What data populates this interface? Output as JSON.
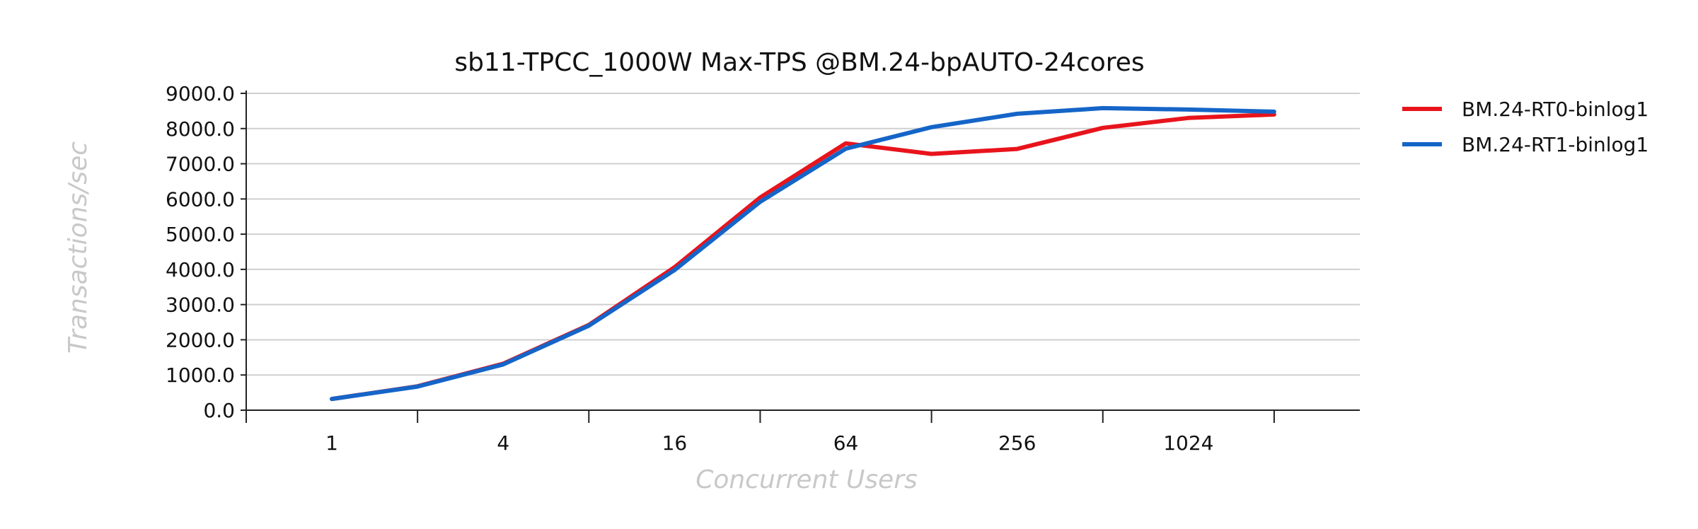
{
  "chart_data": {
    "type": "line",
    "title": "sb11-TPCC_1000W Max-TPS @BM.24-bpAUTO-24cores",
    "xlabel": "Concurrent Users",
    "ylabel": "Transactions/sec",
    "x_scale": "log2",
    "x": [
      1,
      2,
      4,
      8,
      16,
      32,
      64,
      128,
      256,
      512,
      1024,
      2048
    ],
    "x_tick_labels": [
      {
        "value": 1,
        "label": "1"
      },
      {
        "value": 4,
        "label": "4"
      },
      {
        "value": 16,
        "label": "16"
      },
      {
        "value": 64,
        "label": "64"
      },
      {
        "value": 256,
        "label": "256"
      },
      {
        "value": 1024,
        "label": "1024"
      }
    ],
    "ylim": [
      0,
      9000
    ],
    "y_ticks": [
      "0.0",
      "1000.0",
      "2000.0",
      "3000.0",
      "4000.0",
      "5000.0",
      "6000.0",
      "7000.0",
      "8000.0",
      "9000.0"
    ],
    "grid": true,
    "legend_position": "right",
    "series": [
      {
        "name": "BM.24-RT0-binlog1",
        "color": "#e8141c",
        "values": [
          320,
          680,
          1320,
          2420,
          4060,
          6040,
          7580,
          7280,
          7420,
          8020,
          8300,
          8400
        ]
      },
      {
        "name": "BM.24-RT1-binlog1",
        "color": "#1565c8",
        "values": [
          320,
          670,
          1300,
          2400,
          3980,
          5920,
          7430,
          8040,
          8420,
          8580,
          8540,
          8480
        ]
      }
    ]
  }
}
